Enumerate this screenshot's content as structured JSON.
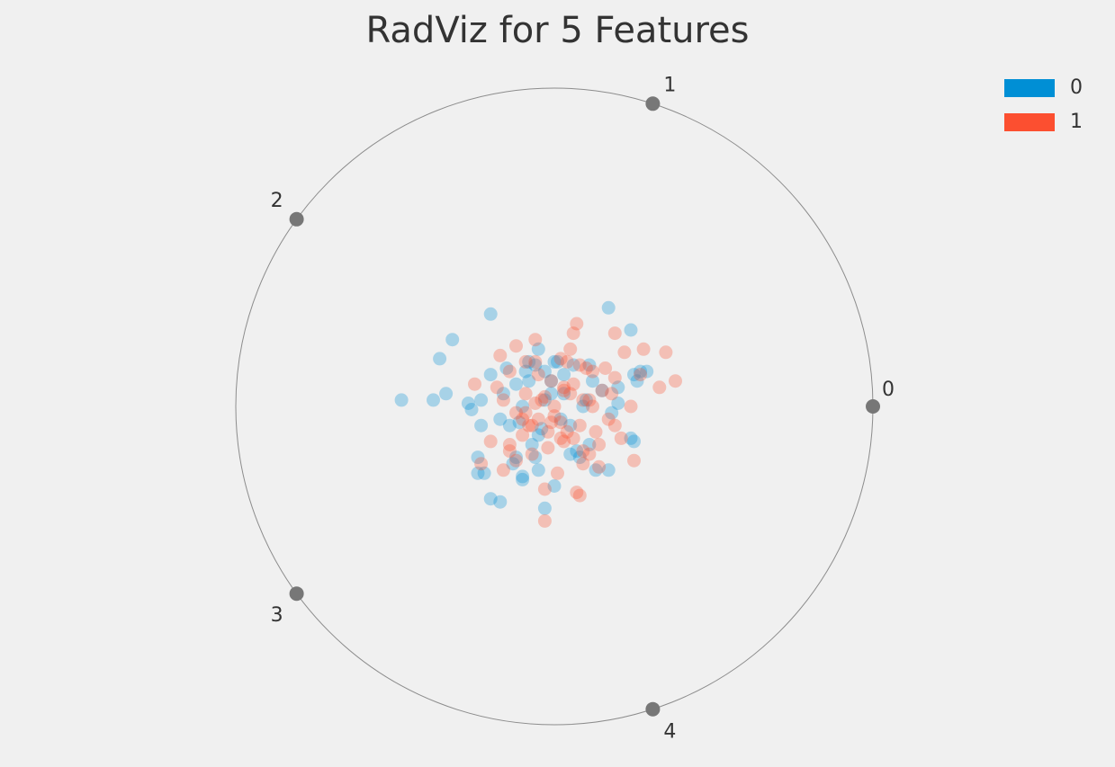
{
  "chart_data": {
    "type": "scatter",
    "title": "RadViz for 5 Features",
    "xlabel": "",
    "ylabel": "",
    "xlim": [
      -1.0,
      1.0
    ],
    "ylim": [
      -1.0,
      1.0
    ],
    "grid": false,
    "legend_position": "top-right",
    "circle_color": "#8c8c8c",
    "anchor_color": "#777777",
    "point_opacity": 0.3,
    "anchors": [
      {
        "label": "0",
        "x": 1.0,
        "y": 0.0
      },
      {
        "label": "1",
        "x": 0.309,
        "y": 0.951
      },
      {
        "label": "2",
        "x": -0.809,
        "y": 0.588
      },
      {
        "label": "3",
        "x": -0.809,
        "y": -0.588
      },
      {
        "label": "4",
        "x": 0.309,
        "y": -0.951
      }
    ],
    "series": [
      {
        "name": "0",
        "color": "#008fd5",
        "x": [
          0.17,
          -0.2,
          0.24,
          -0.32,
          -0.05,
          -0.36,
          0.25,
          0.27,
          0.29,
          0.26,
          -0.48,
          -0.34,
          -0.38,
          -0.23,
          -0.27,
          -0.26,
          0.24,
          0.25,
          0.11,
          0.07,
          0.05,
          -0.06,
          -0.17,
          -0.2,
          -0.03,
          0.0,
          -0.1,
          -0.13,
          -0.24,
          -0.1,
          -0.05,
          -0.12,
          -0.08,
          0.06,
          0.11,
          0.03,
          0.12,
          0.15,
          0.2,
          0.2,
          0.18,
          -0.2,
          -0.15,
          -0.06,
          -0.03,
          -0.01,
          -0.08,
          0.01,
          -0.12,
          -0.16,
          0.1,
          0.09,
          -0.1,
          -0.03,
          0.02,
          0.05,
          -0.17,
          -0.23,
          -0.14,
          -0.24,
          -0.22,
          0.08,
          0.13,
          0.17,
          0.0,
          -0.04,
          -0.07,
          0.03,
          -0.11,
          -0.01,
          -0.09,
          -0.05
        ],
        "y": [
          0.31,
          0.29,
          0.24,
          0.21,
          0.18,
          0.15,
          0.1,
          0.11,
          0.11,
          0.08,
          0.02,
          0.04,
          0.02,
          0.02,
          0.01,
          -0.01,
          -0.1,
          -0.11,
          -0.12,
          -0.14,
          -0.15,
          -0.16,
          -0.3,
          -0.29,
          -0.32,
          -0.25,
          -0.22,
          -0.18,
          -0.21,
          -0.23,
          -0.2,
          -0.16,
          0.14,
          0.13,
          0.13,
          0.1,
          0.08,
          0.05,
          0.06,
          0.01,
          -0.02,
          0.1,
          0.12,
          0.13,
          0.11,
          0.08,
          0.08,
          0.14,
          0.07,
          0.04,
          0.02,
          0.0,
          0.0,
          0.02,
          -0.04,
          -0.06,
          -0.04,
          -0.06,
          -0.06,
          -0.16,
          -0.21,
          -0.16,
          -0.2,
          -0.2,
          0.14,
          -0.07,
          -0.12,
          0.04,
          -0.05,
          0.04,
          0.11,
          -0.09
        ]
      },
      {
        "name": "1",
        "color": "#fc4f30",
        "x": [
          0.07,
          0.06,
          0.19,
          0.35,
          0.38,
          0.33,
          0.28,
          0.27,
          0.22,
          0.24,
          -0.12,
          -0.06,
          -0.17,
          -0.25,
          -0.23,
          -0.03,
          0.07,
          0.08,
          0.25,
          -0.03,
          0.05,
          0.04,
          0.08,
          0.12,
          0.16,
          0.19,
          0.15,
          0.11,
          0.03,
          -0.01,
          -0.05,
          -0.09,
          -0.14,
          -0.18,
          -0.16,
          -0.12,
          -0.05,
          0.02,
          0.08,
          0.13,
          0.19,
          0.21,
          0.14,
          0.09,
          0.03,
          -0.02,
          -0.07,
          -0.1,
          -0.14,
          -0.12,
          -0.07,
          -0.02,
          0.02,
          0.06,
          0.11,
          0.14,
          0.03,
          -0.03,
          0.0,
          -0.06,
          -0.09,
          0.05,
          0.09,
          0.12,
          0.0,
          -0.01,
          0.04,
          -0.1,
          0.17,
          0.18,
          -0.04,
          0.09,
          0.01,
          -0.16,
          -0.2,
          0.02,
          0.06,
          0.1,
          -0.06,
          -0.09,
          -0.14,
          -0.08
        ],
        "y": [
          0.26,
          0.23,
          0.23,
          0.17,
          0.08,
          0.06,
          0.18,
          0.1,
          0.17,
          0.0,
          0.19,
          0.21,
          0.16,
          0.07,
          -0.18,
          -0.26,
          -0.27,
          -0.28,
          -0.17,
          -0.36,
          0.18,
          0.14,
          0.13,
          0.11,
          0.12,
          0.09,
          0.05,
          0.02,
          0.06,
          0.08,
          0.1,
          0.14,
          0.11,
          0.06,
          0.02,
          -0.02,
          -0.04,
          -0.05,
          -0.06,
          -0.08,
          -0.06,
          -0.1,
          -0.12,
          -0.14,
          -0.11,
          -0.08,
          -0.06,
          -0.09,
          -0.12,
          -0.17,
          -0.15,
          -0.13,
          -0.1,
          -0.1,
          -0.15,
          -0.19,
          0.05,
          0.03,
          0.0,
          0.01,
          0.04,
          0.04,
          0.02,
          0.0,
          -0.03,
          -0.05,
          -0.08,
          -0.04,
          -0.04,
          0.04,
          0.02,
          -0.18,
          -0.21,
          -0.2,
          -0.11,
          0.15,
          0.07,
          0.12,
          0.14,
          -0.02,
          -0.14,
          -0.06
        ]
      }
    ]
  }
}
